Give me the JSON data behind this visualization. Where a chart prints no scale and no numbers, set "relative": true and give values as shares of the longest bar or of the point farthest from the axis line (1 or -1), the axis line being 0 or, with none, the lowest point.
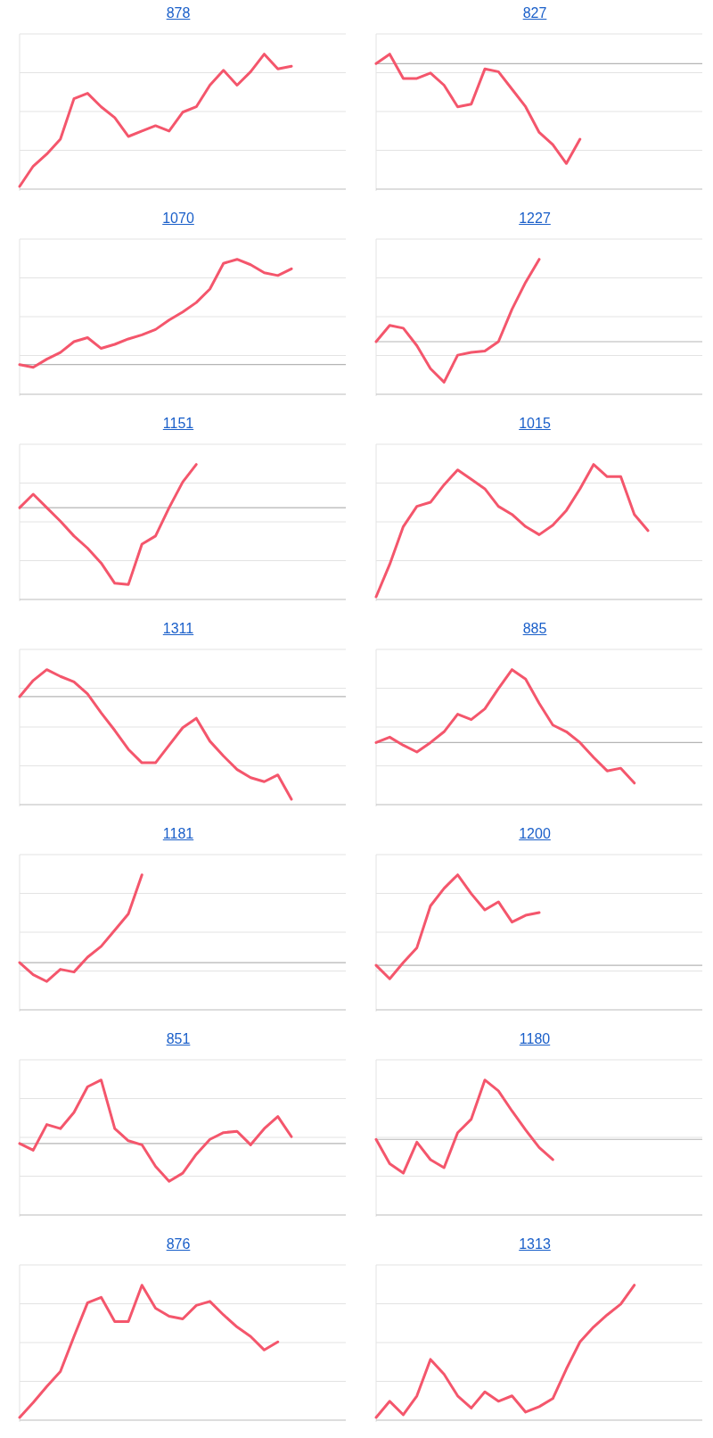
{
  "chart_data": [
    {
      "type": "line",
      "title": "878",
      "relative": true,
      "grid": true,
      "categories": [
        null,
        null,
        null,
        null,
        null,
        null,
        null,
        null,
        null,
        null,
        null,
        null,
        null,
        null,
        null,
        null,
        null,
        null,
        null,
        null,
        null,
        null,
        null,
        null,
        null
      ],
      "series": [
        {
          "color": "#f4566c",
          "values": [
            0.02,
            0.17,
            0.26,
            0.37,
            0.67,
            0.71,
            0.61,
            0.53,
            0.39,
            0.43,
            0.47,
            0.43,
            0.57,
            0.61,
            0.77,
            0.88,
            0.77,
            0.87,
            1.0,
            0.89,
            0.91,
            null,
            null,
            null,
            null
          ]
        }
      ]
    },
    {
      "type": "line",
      "title": "827",
      "relative": true,
      "grid": true,
      "categories": [
        null,
        null,
        null,
        null,
        null,
        null,
        null,
        null,
        null,
        null,
        null,
        null,
        null,
        null,
        null,
        null,
        null,
        null,
        null,
        null,
        null,
        null,
        null,
        null,
        null
      ],
      "series": [
        {
          "color": "#f4566c",
          "values": [
            0.93,
            1.0,
            0.82,
            0.82,
            0.86,
            0.77,
            0.61,
            0.63,
            0.89,
            0.87,
            0.74,
            0.61,
            0.42,
            0.33,
            0.19,
            0.37,
            null,
            null,
            null,
            null,
            null,
            null,
            null,
            null,
            null
          ]
        }
      ],
      "ref_lines": [
        {
          "axis": "y",
          "value": 0.93
        }
      ]
    },
    {
      "type": "line",
      "title": "1070",
      "relative": true,
      "grid": true,
      "categories": [
        null,
        null,
        null,
        null,
        null,
        null,
        null,
        null,
        null,
        null,
        null,
        null,
        null,
        null,
        null,
        null,
        null,
        null,
        null,
        null,
        null,
        null,
        null,
        null,
        null
      ],
      "series": [
        {
          "color": "#f4566c",
          "values": [
            0.22,
            0.2,
            0.26,
            0.31,
            0.39,
            0.42,
            0.34,
            0.37,
            0.41,
            0.44,
            0.48,
            0.55,
            0.61,
            0.68,
            0.78,
            0.97,
            1.0,
            0.96,
            0.9,
            0.88,
            0.93,
            null,
            null,
            null,
            null
          ]
        }
      ],
      "ref_lines": [
        {
          "axis": "y",
          "value": 0.22
        }
      ]
    },
    {
      "type": "line",
      "title": "1227",
      "relative": true,
      "grid": true,
      "categories": [
        null,
        null,
        null,
        null,
        null,
        null,
        null,
        null,
        null,
        null,
        null,
        null,
        null,
        null,
        null,
        null,
        null,
        null,
        null,
        null,
        null,
        null,
        null,
        null,
        null
      ],
      "series": [
        {
          "color": "#f4566c",
          "values": [
            0.39,
            0.51,
            0.49,
            0.36,
            0.19,
            0.09,
            0.29,
            0.31,
            0.32,
            0.39,
            0.63,
            0.83,
            1.0,
            null,
            null,
            null,
            null,
            null,
            null,
            null,
            null,
            null,
            null,
            null,
            null
          ]
        }
      ],
      "ref_lines": [
        {
          "axis": "y",
          "value": 0.39
        }
      ]
    },
    {
      "type": "line",
      "title": "1151",
      "relative": true,
      "grid": true,
      "categories": [
        null,
        null,
        null,
        null,
        null,
        null,
        null,
        null,
        null,
        null,
        null,
        null,
        null,
        null,
        null,
        null,
        null,
        null,
        null,
        null,
        null,
        null,
        null,
        null,
        null
      ],
      "series": [
        {
          "color": "#f4566c",
          "values": [
            0.68,
            0.78,
            0.68,
            0.58,
            0.47,
            0.38,
            0.27,
            0.12,
            0.11,
            0.41,
            0.47,
            0.68,
            0.87,
            1.0,
            null,
            null,
            null,
            null,
            null,
            null,
            null,
            null,
            null,
            null,
            null
          ]
        }
      ],
      "ref_lines": [
        {
          "axis": "y",
          "value": 0.68
        }
      ]
    },
    {
      "type": "line",
      "title": "1015",
      "relative": true,
      "grid": true,
      "categories": [
        null,
        null,
        null,
        null,
        null,
        null,
        null,
        null,
        null,
        null,
        null,
        null,
        null,
        null,
        null,
        null,
        null,
        null,
        null,
        null,
        null,
        null,
        null,
        null,
        null
      ],
      "series": [
        {
          "color": "#f4566c",
          "values": [
            0.02,
            0.26,
            0.54,
            0.69,
            0.72,
            0.85,
            0.96,
            0.89,
            0.82,
            0.69,
            0.63,
            0.54,
            0.48,
            0.55,
            0.66,
            0.82,
            1.0,
            0.91,
            0.91,
            0.63,
            0.51,
            null,
            null,
            null,
            null
          ]
        }
      ]
    },
    {
      "type": "line",
      "title": "1311",
      "relative": true,
      "grid": true,
      "categories": [
        null,
        null,
        null,
        null,
        null,
        null,
        null,
        null,
        null,
        null,
        null,
        null,
        null,
        null,
        null,
        null,
        null,
        null,
        null,
        null,
        null,
        null,
        null,
        null,
        null
      ],
      "series": [
        {
          "color": "#f4566c",
          "values": [
            0.8,
            0.92,
            1.0,
            0.95,
            0.91,
            0.82,
            0.68,
            0.55,
            0.41,
            0.31,
            0.31,
            0.44,
            0.57,
            0.64,
            0.47,
            0.36,
            0.26,
            0.2,
            0.17,
            0.22,
            0.04,
            null,
            null,
            null,
            null
          ]
        }
      ],
      "ref_lines": [
        {
          "axis": "y",
          "value": 0.8
        }
      ]
    },
    {
      "type": "line",
      "title": "885",
      "relative": true,
      "grid": true,
      "categories": [
        null,
        null,
        null,
        null,
        null,
        null,
        null,
        null,
        null,
        null,
        null,
        null,
        null,
        null,
        null,
        null,
        null,
        null,
        null,
        null,
        null,
        null,
        null,
        null,
        null
      ],
      "series": [
        {
          "color": "#f4566c",
          "values": [
            0.46,
            0.5,
            0.44,
            0.39,
            0.46,
            0.54,
            0.67,
            0.63,
            0.71,
            0.86,
            1.0,
            0.93,
            0.75,
            0.59,
            0.54,
            0.46,
            0.35,
            0.25,
            0.27,
            0.16,
            null,
            null,
            null,
            null,
            null
          ]
        }
      ],
      "ref_lines": [
        {
          "axis": "y",
          "value": 0.46
        }
      ]
    },
    {
      "type": "line",
      "title": "1181",
      "relative": true,
      "grid": true,
      "categories": [
        null,
        null,
        null,
        null,
        null,
        null,
        null,
        null,
        null,
        null,
        null,
        null,
        null,
        null,
        null,
        null,
        null,
        null,
        null,
        null,
        null,
        null,
        null,
        null,
        null
      ],
      "series": [
        {
          "color": "#f4566c",
          "values": [
            0.35,
            0.26,
            0.21,
            0.3,
            0.28,
            0.39,
            0.47,
            0.59,
            0.71,
            1.0,
            null,
            null,
            null,
            null,
            null,
            null,
            null,
            null,
            null,
            null,
            null,
            null,
            null,
            null,
            null
          ]
        }
      ],
      "ref_lines": [
        {
          "axis": "y",
          "value": 0.35
        }
      ]
    },
    {
      "type": "line",
      "title": "1200",
      "relative": true,
      "grid": true,
      "categories": [
        null,
        null,
        null,
        null,
        null,
        null,
        null,
        null,
        null,
        null,
        null,
        null,
        null,
        null,
        null,
        null,
        null,
        null,
        null,
        null,
        null,
        null,
        null,
        null,
        null
      ],
      "series": [
        {
          "color": "#f4566c",
          "values": [
            0.33,
            0.23,
            0.35,
            0.46,
            0.77,
            0.9,
            1.0,
            0.86,
            0.74,
            0.8,
            0.65,
            0.7,
            0.72,
            null,
            null,
            null,
            null,
            null,
            null,
            null,
            null,
            null,
            null,
            null,
            null
          ]
        }
      ],
      "ref_lines": [
        {
          "axis": "y",
          "value": 0.33
        }
      ]
    },
    {
      "type": "line",
      "title": "851",
      "relative": true,
      "grid": true,
      "categories": [
        null,
        null,
        null,
        null,
        null,
        null,
        null,
        null,
        null,
        null,
        null,
        null,
        null,
        null,
        null,
        null,
        null,
        null,
        null,
        null,
        null,
        null,
        null,
        null,
        null
      ],
      "series": [
        {
          "color": "#f4566c",
          "values": [
            0.53,
            0.48,
            0.67,
            0.64,
            0.76,
            0.95,
            1.0,
            0.64,
            0.55,
            0.52,
            0.36,
            0.25,
            0.31,
            0.45,
            0.56,
            0.61,
            0.62,
            0.52,
            0.64,
            0.73,
            0.58,
            null,
            null,
            null,
            null
          ]
        }
      ],
      "ref_lines": [
        {
          "axis": "y",
          "value": 0.53
        }
      ]
    },
    {
      "type": "line",
      "title": "1180",
      "relative": true,
      "grid": true,
      "categories": [
        null,
        null,
        null,
        null,
        null,
        null,
        null,
        null,
        null,
        null,
        null,
        null,
        null,
        null,
        null,
        null,
        null,
        null,
        null,
        null,
        null,
        null,
        null,
        null,
        null
      ],
      "series": [
        {
          "color": "#f4566c",
          "values": [
            0.56,
            0.38,
            0.31,
            0.54,
            0.41,
            0.35,
            0.61,
            0.71,
            1.0,
            0.92,
            0.77,
            0.63,
            0.5,
            0.41,
            null,
            null,
            null,
            null,
            null,
            null,
            null,
            null,
            null,
            null,
            null
          ]
        }
      ],
      "ref_lines": [
        {
          "axis": "y",
          "value": 0.56
        }
      ]
    },
    {
      "type": "line",
      "title": "876",
      "relative": true,
      "grid": true,
      "categories": [
        null,
        null,
        null,
        null,
        null,
        null,
        null,
        null,
        null,
        null,
        null,
        null,
        null,
        null,
        null,
        null,
        null,
        null,
        null,
        null,
        null,
        null,
        null,
        null,
        null
      ],
      "series": [
        {
          "color": "#f4566c",
          "values": [
            0.02,
            0.13,
            0.25,
            0.36,
            0.62,
            0.87,
            0.91,
            0.73,
            0.73,
            1.0,
            0.83,
            0.77,
            0.75,
            0.85,
            0.88,
            0.78,
            0.69,
            0.62,
            0.52,
            0.58,
            null,
            null,
            null,
            null,
            null
          ]
        }
      ]
    },
    {
      "type": "line",
      "title": "1313",
      "relative": true,
      "grid": true,
      "categories": [
        null,
        null,
        null,
        null,
        null,
        null,
        null,
        null,
        null,
        null,
        null,
        null,
        null,
        null,
        null,
        null,
        null,
        null,
        null,
        null,
        null,
        null,
        null,
        null,
        null
      ],
      "series": [
        {
          "color": "#f4566c",
          "values": [
            0.02,
            0.14,
            0.04,
            0.18,
            0.45,
            0.34,
            0.18,
            0.09,
            0.21,
            0.14,
            0.18,
            0.06,
            0.1,
            0.16,
            0.38,
            0.58,
            0.69,
            0.78,
            0.86,
            1.0,
            null,
            null,
            null,
            null,
            null
          ]
        }
      ]
    }
  ]
}
